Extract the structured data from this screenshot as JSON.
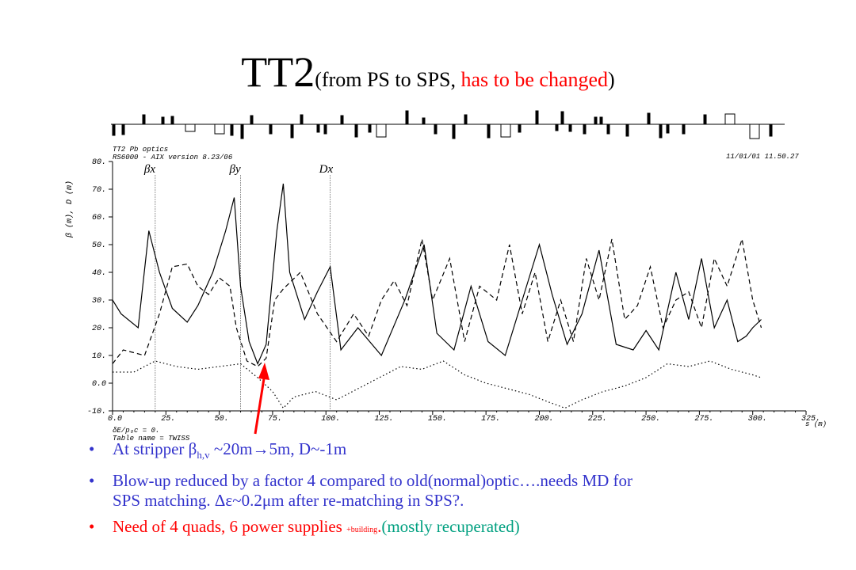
{
  "slide": {
    "title": {
      "main": "TT2",
      "paren_open": "(from PS to SPS, ",
      "red_part": "has to be changed",
      "paren_close": ")"
    },
    "bullets": [
      {
        "pre": "At stripper β",
        "sub": "h,v",
        "post": " ~20m→5m, D~-1m"
      },
      {
        "line1": "Blow-up reduced by a factor 4 compared to old(normal)optic….needs MD for",
        "line2": "SPS matching. Δε~0.2μm after re-matching in SPS?."
      },
      {
        "red_text": "Need of 4 quads, 6 power supplies ",
        "small_text": "+building",
        "dot": ".",
        "green_text": "(mostly recuperated)"
      }
    ],
    "colors": {
      "title_red": "#ff0000",
      "bullet_blue": "#3333cc",
      "bullet_red": "#ff0000",
      "bullet_green": "#00a080",
      "arrow": "#ff0000"
    }
  },
  "chart_data": {
    "type": "line",
    "header_left": [
      "TT2 Pb optics",
      "RS6000 - AIX version 8.23/06"
    ],
    "header_right": "11/01/01  11.50.27",
    "ylabel": "β (m), D (m)",
    "xlabel": "s (m)",
    "footer": [
      "δE/p₀c = 0.",
      "Table name = TWISS"
    ],
    "xlim": [
      0,
      325
    ],
    "ylim": [
      -10,
      80
    ],
    "x_ticks": [
      "0.0",
      "25.",
      "50.",
      "75.",
      "100.",
      "125.",
      "150.",
      "175.",
      "200.",
      "225.",
      "250.",
      "275.",
      "300.",
      "325."
    ],
    "x_tick_values": [
      0,
      25,
      50,
      75,
      100,
      125,
      150,
      175,
      200,
      225,
      250,
      275,
      300,
      325
    ],
    "y_ticks": [
      "-10.",
      "0.0",
      "10.",
      "20.",
      "30.",
      "40.",
      "50.",
      "60.",
      "70.",
      "80."
    ],
    "y_tick_values": [
      -10,
      0,
      10,
      20,
      30,
      40,
      50,
      60,
      70,
      80
    ],
    "markers": [
      {
        "label": "βx",
        "x": 20
      },
      {
        "label": "βy",
        "x": 60
      },
      {
        "label": "Dx",
        "x": 102
      }
    ],
    "series": [
      {
        "style": "solid",
        "x": [
          0,
          4,
          12,
          17,
          22,
          28,
          35,
          40,
          47,
          53,
          57,
          60,
          64,
          68,
          72,
          77,
          80,
          83,
          90,
          96,
          102,
          107,
          115,
          126,
          137,
          146,
          152,
          160,
          168,
          176,
          184,
          192,
          200,
          206,
          213,
          220,
          228,
          236,
          244,
          250,
          256,
          264,
          270,
          276,
          282,
          288,
          293,
          297,
          300,
          304
        ],
        "y": [
          30,
          25,
          20,
          55,
          40,
          27,
          22,
          28,
          40,
          55,
          67,
          35,
          15,
          7,
          14,
          55,
          72,
          40,
          23,
          33,
          42,
          12,
          20,
          10,
          30,
          50,
          18,
          12,
          35,
          15,
          10,
          30,
          50,
          32,
          14,
          25,
          48,
          14,
          12,
          19,
          12,
          40,
          23,
          45,
          20,
          30,
          15,
          17,
          20,
          23
        ]
      },
      {
        "style": "dashed",
        "x": [
          0,
          5,
          15,
          22,
          28,
          35,
          40,
          45,
          50,
          55,
          58,
          63,
          68,
          72,
          76,
          80,
          88,
          96,
          105,
          113,
          120,
          126,
          132,
          138,
          145,
          150,
          158,
          165,
          172,
          180,
          186,
          192,
          198,
          204,
          210,
          216,
          222,
          228,
          234,
          240,
          246,
          252,
          258,
          264,
          270,
          276,
          282,
          288,
          295,
          300,
          304
        ],
        "y": [
          7,
          12,
          10,
          25,
          42,
          43,
          35,
          32,
          38,
          35,
          20,
          8,
          6,
          9,
          30,
          34,
          40,
          25,
          15,
          25,
          17,
          30,
          37,
          28,
          52,
          30,
          45,
          15,
          35,
          30,
          50,
          25,
          40,
          15,
          30,
          15,
          45,
          30,
          52,
          23,
          28,
          42,
          20,
          30,
          33,
          20,
          45,
          35,
          52,
          30,
          20
        ]
      },
      {
        "style": "dotted",
        "x": [
          0,
          10,
          20,
          30,
          40,
          50,
          60,
          68,
          75,
          80,
          85,
          95,
          105,
          115,
          125,
          135,
          145,
          155,
          165,
          175,
          185,
          195,
          205,
          212,
          220,
          230,
          240,
          250,
          260,
          270,
          280,
          290,
          300,
          304
        ],
        "y": [
          4,
          4,
          8,
          6,
          5,
          6,
          7,
          2,
          -3,
          -9,
          -5,
          -3,
          -6,
          -2,
          2,
          6,
          5,
          8,
          3,
          0,
          -2,
          -4,
          -7,
          -9,
          -6,
          -3,
          -1,
          2,
          7,
          6,
          8,
          5,
          3,
          2
        ]
      }
    ]
  }
}
